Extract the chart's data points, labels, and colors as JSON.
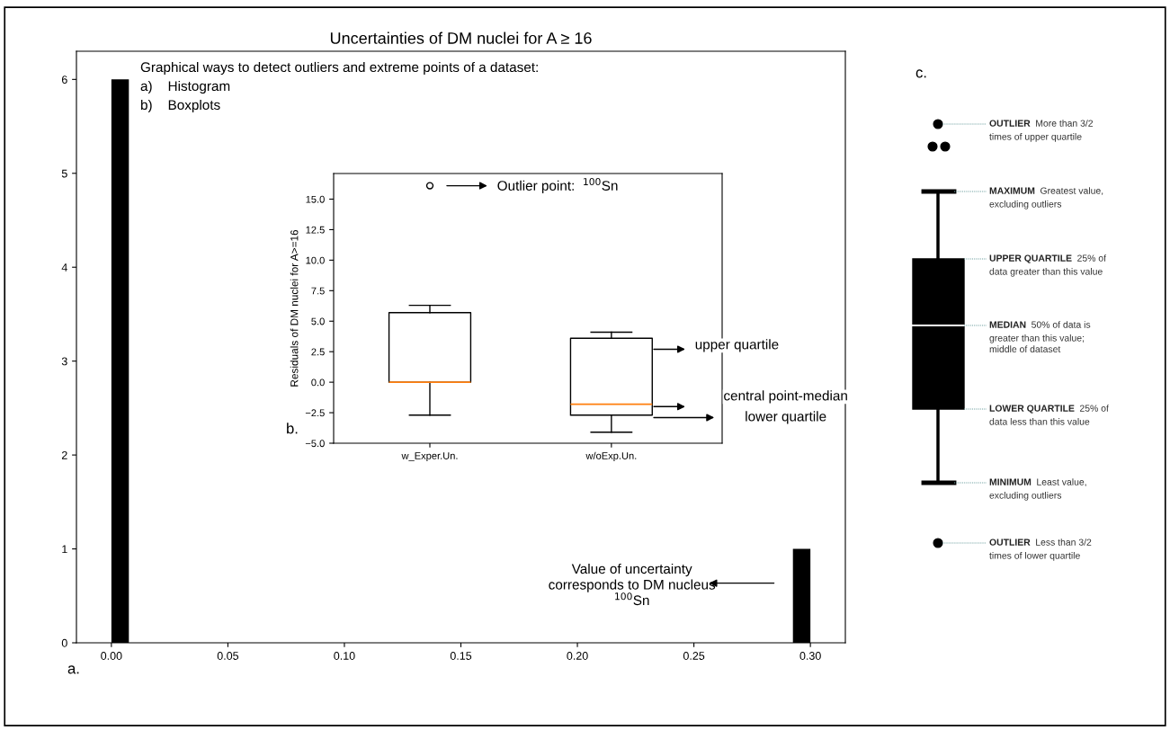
{
  "chart_data": [
    {
      "type": "histogram",
      "title": "Uncertainties of DM nuclei for A ≥ 16",
      "bins": [
        0,
        0.0075,
        0.015,
        0.0225,
        0.03,
        0.0375,
        0.045,
        0.0525,
        0.06,
        0.0675,
        0.075,
        0.0825,
        0.09,
        0.0975,
        0.105,
        0.1125,
        0.12,
        0.1275,
        0.135,
        0.1425,
        0.15,
        0.1575,
        0.165,
        0.1725,
        0.18,
        0.1875,
        0.195,
        0.2025,
        0.21,
        0.2175,
        0.225,
        0.2325,
        0.24,
        0.2475,
        0.255,
        0.2625,
        0.27,
        0.2775,
        0.285,
        0.2925,
        0.3
      ],
      "values": [
        6,
        0,
        0,
        0,
        0,
        0,
        0,
        0,
        0,
        0,
        0,
        0,
        0,
        0,
        0,
        0,
        0,
        0,
        0,
        0,
        0,
        0,
        0,
        0,
        0,
        0,
        0,
        0,
        0,
        0,
        0,
        0,
        0,
        0,
        0,
        0,
        0,
        0,
        0,
        1
      ],
      "color": "#000000",
      "xlim": [
        -0.015,
        0.315
      ],
      "ylim": [
        0,
        6.3
      ],
      "xticks": [
        {
          "value": 0,
          "label": "0.00"
        },
        {
          "value": 0.05,
          "label": "0.05"
        },
        {
          "value": 0.1,
          "label": "0.10"
        },
        {
          "value": 0.15,
          "label": "0.15"
        },
        {
          "value": 0.2,
          "label": "0.20"
        },
        {
          "value": 0.25,
          "label": "0.25"
        },
        {
          "value": 0.3,
          "label": "0.30"
        }
      ],
      "yticks": [
        0,
        1,
        2,
        3,
        4,
        5,
        6
      ],
      "grid": false,
      "annotations": [
        "Graphical ways to detect outliers and extreme points of a dataset:",
        "a)    Histogram",
        "b)    Boxplots",
        "Value of uncertainty\ncorresponds to DM nucleus\n$^{100}$Sn",
        "a."
      ]
    },
    {
      "type": "box",
      "ylabel": "Residuals of DM nuclei for A>=16",
      "categories": [
        "w_Exper.Un.",
        "w/oExp.Un."
      ],
      "boxes": [
        {
          "low": -2.7,
          "q1": 0,
          "median": 0,
          "q3": 5.7,
          "high": 6.3,
          "outliers": [
            16.1
          ]
        },
        {
          "low": -4.1,
          "q1": -2.7,
          "median": -1.8,
          "q3": 3.6,
          "high": 4.1
        }
      ],
      "color": "#000000",
      "ylim": [
        -5,
        17.1
      ],
      "yticks": [
        {
          "value": -5,
          "label": "−5.0"
        },
        {
          "value": -2.5,
          "label": "−2.5"
        },
        {
          "value": 0,
          "label": "0.0"
        },
        {
          "value": 2.5,
          "label": "2.5"
        },
        {
          "value": 5,
          "label": "5.0"
        },
        {
          "value": 7.5,
          "label": "7.5"
        },
        {
          "value": 10,
          "label": "10.0"
        },
        {
          "value": 12.5,
          "label": "12.5"
        },
        {
          "value": 15,
          "label": "15.0"
        }
      ],
      "grid": false,
      "annotations": [
        "Outlier point:  $^{100}$Sn",
        "upper quartile",
        "central point-median",
        "lower quartile",
        "b."
      ]
    },
    {
      "type": "other",
      "annotations": [
        "c.",
        "OUTLIER",
        "More than 3/2\ntimes of upper quartile",
        "MAXIMUM",
        "Greatest value,\nexcluding outliers",
        "UPPER QUARTILE",
        "25% of\ndata greater than this value",
        "MEDIAN",
        "50% of data is\ngreater than this value;\nmiddle of dataset",
        "LOWER QUARTILE",
        "25% of\ndata less than this value",
        "MINIMUM",
        "Least value,\nexcluding outliers",
        "OUTLIER",
        "Less than 3/2\ntimes of lower quartile"
      ]
    }
  ]
}
